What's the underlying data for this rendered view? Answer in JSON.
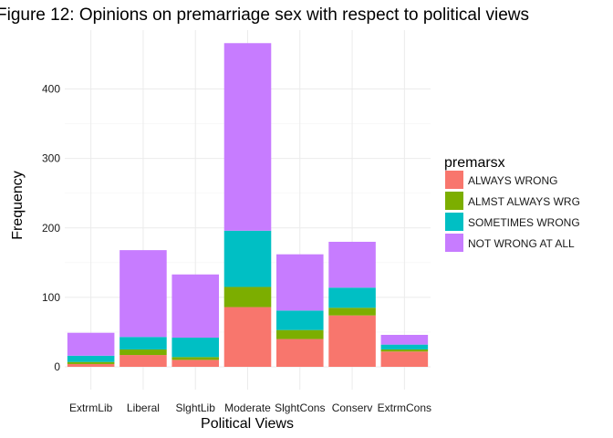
{
  "chart_data": {
    "type": "bar",
    "stacked": true,
    "title": "Figure 12: Opinions on premarriage sex with respect to political views",
    "xlabel": "Political Views",
    "ylabel": "Frequency",
    "categories": [
      "ExtrmLib",
      "Liberal",
      "SlghtLib",
      "Moderate",
      "SlghtCons",
      "Conserv",
      "ExtrmCons"
    ],
    "series": [
      {
        "name": "ALWAYS WRONG",
        "color": "#F8766D",
        "values": [
          4,
          17,
          10,
          86,
          40,
          74,
          22
        ]
      },
      {
        "name": "ALMST ALWAYS WRG",
        "color": "#7CAE00",
        "values": [
          3,
          8,
          4,
          29,
          13,
          11,
          3
        ]
      },
      {
        "name": "SOMETIMES WRONG",
        "color": "#00BFC4",
        "values": [
          9,
          18,
          28,
          81,
          28,
          29,
          7
        ]
      },
      {
        "name": "NOT WRONG AT ALL",
        "color": "#C77CFF",
        "values": [
          33,
          125,
          91,
          270,
          81,
          66,
          14
        ]
      }
    ],
    "ylim": [
      0,
      490
    ],
    "yticks": [
      0,
      100,
      200,
      300,
      400
    ],
    "legend": {
      "title": "premarsx",
      "position": "right"
    },
    "grid": true
  }
}
